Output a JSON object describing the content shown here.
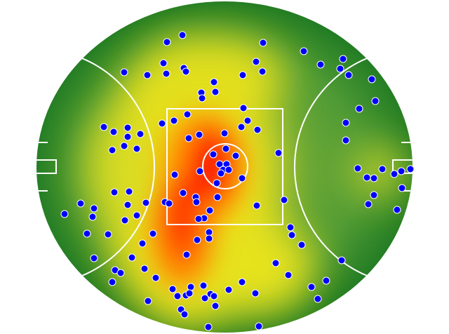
{
  "chart_data": {
    "type": "scatter",
    "color": "#0000ff",
    "xlim": [
      52,
      588
    ],
    "ylim": [
      474,
      2
    ],
    "x": [
      238,
      260,
      375,
      433,
      489,
      457,
      485,
      497,
      530,
      177,
      210,
      233,
      237,
      262,
      265,
      346,
      365,
      374,
      305,
      307,
      287,
      288,
      535,
      512,
      347,
      267,
      353,
      344,
      231,
      248,
      367,
      493,
      148,
      162,
      182,
      182,
      200,
      160,
      177,
      195,
      269,
      284,
      320,
      493,
      304,
      322,
      336,
      397,
      313,
      323,
      318,
      326,
      315,
      285,
      249,
      309,
      345,
      510,
      523,
      533,
      545,
      562,
      572,
      585,
      573,
      533,
      525,
      566,
      163,
      184,
      261,
      279,
      280,
      310,
      235,
      241,
      208,
      182,
      405,
      366,
      115,
      134,
      132,
      92,
      299,
      291,
      283,
      195,
      178,
      124,
      154,
      218,
      298,
      298,
      281,
      414,
      416,
      203,
      430,
      266,
      134,
      188,
      487,
      393,
      206,
      222,
      164,
      172,
      160,
      411,
      465,
      444,
      345,
      246,
      272,
      290,
      326,
      364,
      253,
      265,
      270,
      300,
      292,
      305,
      211,
      453,
      307,
      258,
      263,
      297,
      369
    ],
    "values": [
      60,
      50,
      61,
      73,
      84,
      92,
      98,
      107,
      113,
      103,
      107,
      90,
      105,
      97,
      102,
      107,
      88,
      102,
      117,
      131,
      132,
      140,
      144,
      155,
      154,
      163,
      172,
      181,
      176,
      172,
      185,
      175,
      181,
      188,
      182,
      195,
      191,
      214,
      208,
      212,
      197,
      192,
      190,
      200,
      220,
      212,
      222,
      218,
      234,
      234,
      242,
      242,
      247,
      244,
      249,
      261,
      254,
      240,
      253,
      254,
      241,
      248,
      244,
      241,
      268,
      278,
      291,
      299,
      274,
      273,
      275,
      281,
      288,
      281,
      288,
      290,
      289,
      292,
      285,
      293,
      290,
      297,
      309,
      305,
      300,
      311,
      312,
      307,
      314,
      333,
      334,
      333,
      331,
      340,
      342,
      324,
      335,
      347,
      349,
      363,
      368,
      367,
      371,
      375,
      383,
      396,
      385,
      389,
      402,
      392,
      400,
      409,
      402,
      412,
      409,
      407,
      413,
      418,
      422,
      421,
      418,
      419,
      425,
      422,
      429,
      426,
      436,
      441,
      448,
      466,
      465
    ]
  }
}
